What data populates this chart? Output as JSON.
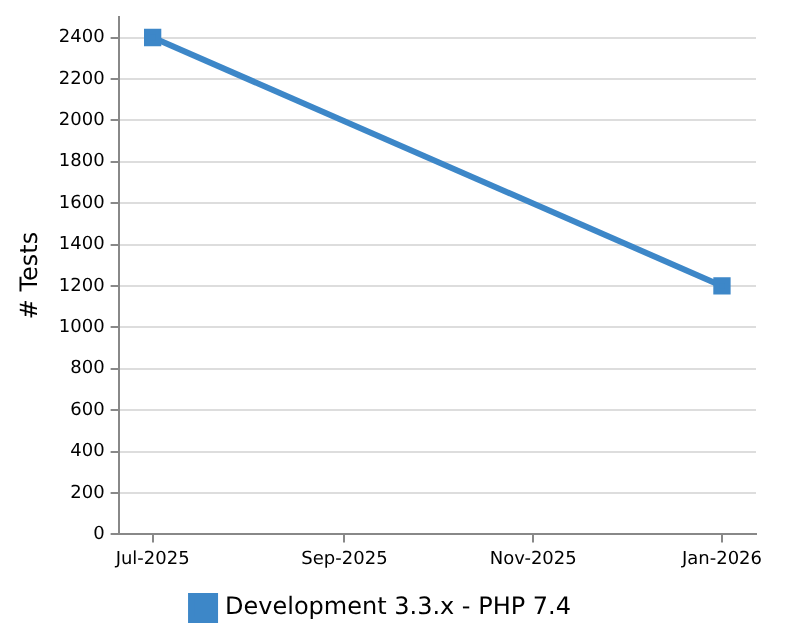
{
  "chart_data": {
    "type": "line",
    "ylabel": "# Tests",
    "x": [
      "2025-07-01",
      "2026-01-01"
    ],
    "series": [
      {
        "name": "Development 3.3.x - PHP 7.4",
        "color": "#3d87c8",
        "values": [
          2400,
          1200
        ]
      }
    ],
    "xlim": [
      "2025-06-20",
      "2026-01-12"
    ],
    "xticks": [
      {
        "value": "2025-07-01",
        "label": "Jul-2025"
      },
      {
        "value": "2025-09-01",
        "label": "Sep-2025"
      },
      {
        "value": "2025-11-01",
        "label": "Nov-2025"
      },
      {
        "value": "2026-01-01",
        "label": "Jan-2026"
      }
    ],
    "ylim": [
      0,
      2500
    ],
    "yticks": [
      0,
      200,
      400,
      600,
      800,
      1000,
      1200,
      1400,
      1600,
      1800,
      2000,
      2200,
      2400
    ],
    "grid": "y",
    "legend": "bottom",
    "marker": "square",
    "line_style": "solid"
  }
}
